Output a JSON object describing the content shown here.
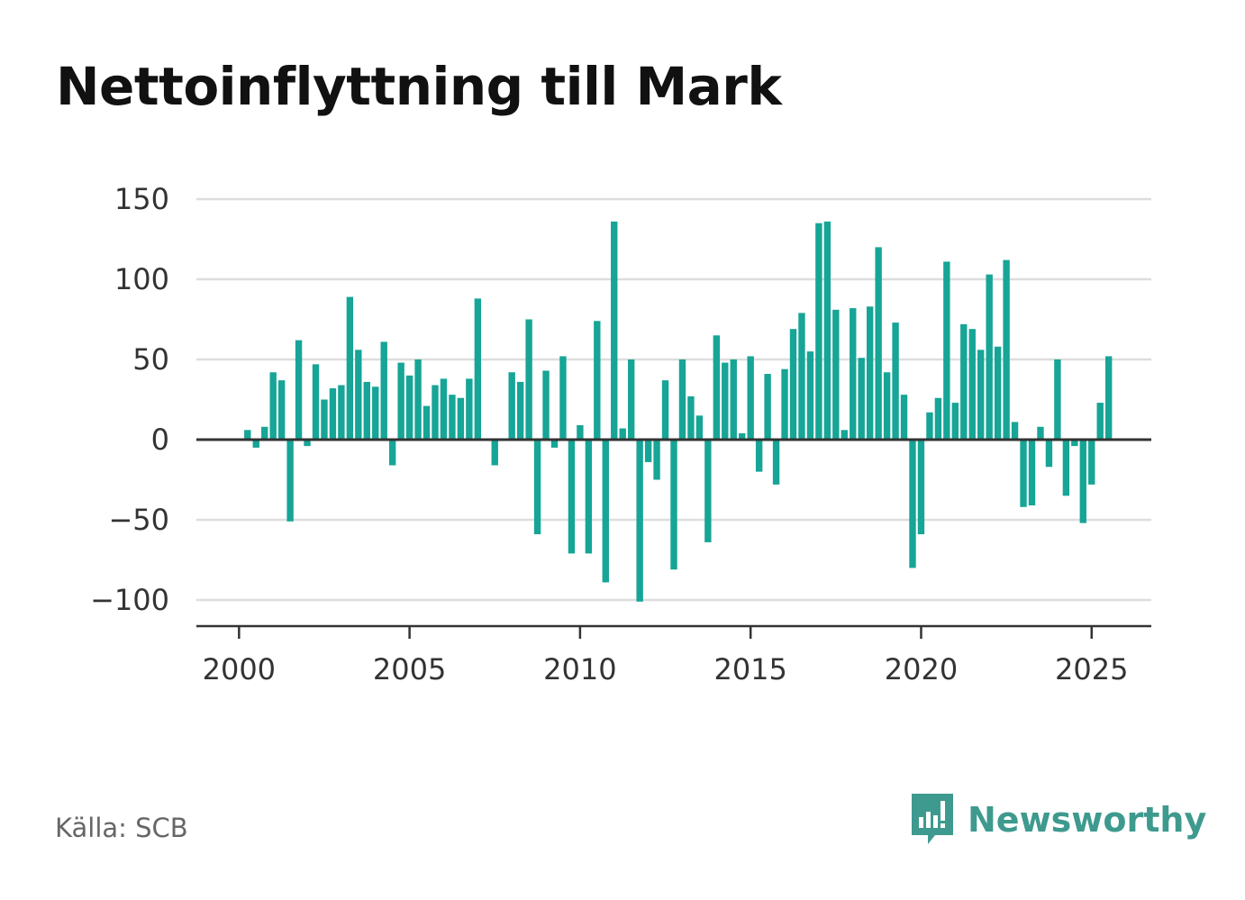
{
  "title": "Nettoinflyttning till Mark",
  "source": "Källa: SCB",
  "brand": "Newsworthy",
  "colors": {
    "bar": "#16a596",
    "grid": "#dddddd",
    "axis": "#333333",
    "brand": "#3e9a8e"
  },
  "chart_data": {
    "type": "bar",
    "title": "Nettoinflyttning till Mark",
    "xlabel": "",
    "ylabel": "",
    "ylim": [
      -115,
      150
    ],
    "yticks": [
      150,
      100,
      50,
      0,
      -50,
      -100
    ],
    "ytick_labels": [
      "150",
      "100",
      "50",
      "0",
      "−50",
      "−100"
    ],
    "xticks": [
      2000,
      2005,
      2010,
      2015,
      2020,
      2025
    ],
    "xtick_labels": [
      "2000",
      "2005",
      "2010",
      "2015",
      "2020",
      "2025"
    ],
    "x_range": [
      1998.75,
      2026.75
    ],
    "grid": true,
    "frequency": "quarterly",
    "start": [
      2000,
      1
    ],
    "values": [
      0,
      6,
      -5,
      8,
      42,
      37,
      -51,
      62,
      -4,
      47,
      25,
      32,
      34,
      89,
      56,
      36,
      33,
      61,
      -16,
      48,
      40,
      50,
      21,
      34,
      38,
      28,
      26,
      38,
      88,
      0,
      -16,
      0,
      42,
      36,
      75,
      -59,
      43,
      -5,
      52,
      -71,
      9,
      -71,
      74,
      -89,
      136,
      7,
      50,
      -101,
      -14,
      -25,
      37,
      -81,
      50,
      27,
      15,
      -64,
      65,
      48,
      50,
      4,
      52,
      -20,
      41,
      -28,
      44,
      69,
      79,
      55,
      135,
      136,
      81,
      6,
      82,
      51,
      83,
      120,
      42,
      73,
      28,
      -80,
      -59,
      17,
      26,
      111,
      23,
      72,
      69,
      56,
      103,
      58,
      112,
      11,
      -42,
      -41,
      8,
      -17,
      50,
      -35,
      -4,
      -52,
      -28,
      23,
      52
    ]
  }
}
